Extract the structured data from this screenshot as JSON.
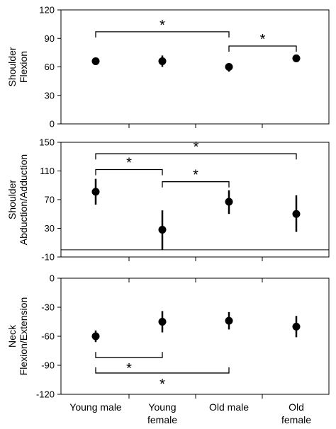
{
  "chart_data": [
    {
      "type": "scatter",
      "ylabel": [
        "Shoulder",
        "Flexion"
      ],
      "ylim": [
        0,
        120
      ],
      "yticks": [
        0,
        30,
        60,
        90,
        120
      ],
      "categories": [],
      "points": [
        {
          "value": 66,
          "err_low": 66,
          "err_high": 66
        },
        {
          "value": 66,
          "err_low": 60,
          "err_high": 72
        },
        {
          "value": 60,
          "err_low": 55,
          "err_high": 64
        },
        {
          "value": 69,
          "err_low": 69,
          "err_high": 69
        }
      ],
      "significance": [
        {
          "from": 0,
          "to": 2,
          "y": 97,
          "label": "*"
        },
        {
          "from": 2,
          "to": 3,
          "y": 82,
          "label": "*"
        }
      ]
    },
    {
      "type": "scatter",
      "ylabel": [
        "Shoulder",
        "Abduction/Adduction"
      ],
      "ylim": [
        -10,
        150
      ],
      "yticks": [
        -10,
        30,
        70,
        110,
        150
      ],
      "zero_line": true,
      "categories": [],
      "points": [
        {
          "value": 81,
          "err_low": 63,
          "err_high": 99
        },
        {
          "value": 28,
          "err_low": 0,
          "err_high": 55
        },
        {
          "value": 67,
          "err_low": 50,
          "err_high": 83
        },
        {
          "value": 50,
          "err_low": 25,
          "err_high": 76
        }
      ],
      "significance": [
        {
          "from": 0,
          "to": 3,
          "y": 134,
          "label": "*"
        },
        {
          "from": 0,
          "to": 1,
          "y": 112,
          "label": "*"
        },
        {
          "from": 1,
          "to": 2,
          "y": 95,
          "label": "*"
        }
      ]
    },
    {
      "type": "scatter",
      "ylabel": [
        "Neck",
        "Flexion/Extension"
      ],
      "ylim": [
        -120,
        0
      ],
      "yticks": [
        -120,
        -90,
        -60,
        -30,
        0
      ],
      "categories": [
        [
          "Young male"
        ],
        [
          "Young",
          "female"
        ],
        [
          "Old male"
        ],
        [
          "Old",
          "female"
        ]
      ],
      "points": [
        {
          "value": -60,
          "err_low": -66,
          "err_high": -54
        },
        {
          "value": -45,
          "err_low": -56,
          "err_high": -34
        },
        {
          "value": -44,
          "err_low": -53,
          "err_high": -35
        },
        {
          "value": -50,
          "err_low": -61,
          "err_high": -39
        }
      ],
      "significance": [
        {
          "from": 0,
          "to": 1,
          "y": -82,
          "label": "*",
          "open": "up"
        },
        {
          "from": 0,
          "to": 2,
          "y": -98,
          "label": "*",
          "open": "up"
        }
      ]
    }
  ]
}
